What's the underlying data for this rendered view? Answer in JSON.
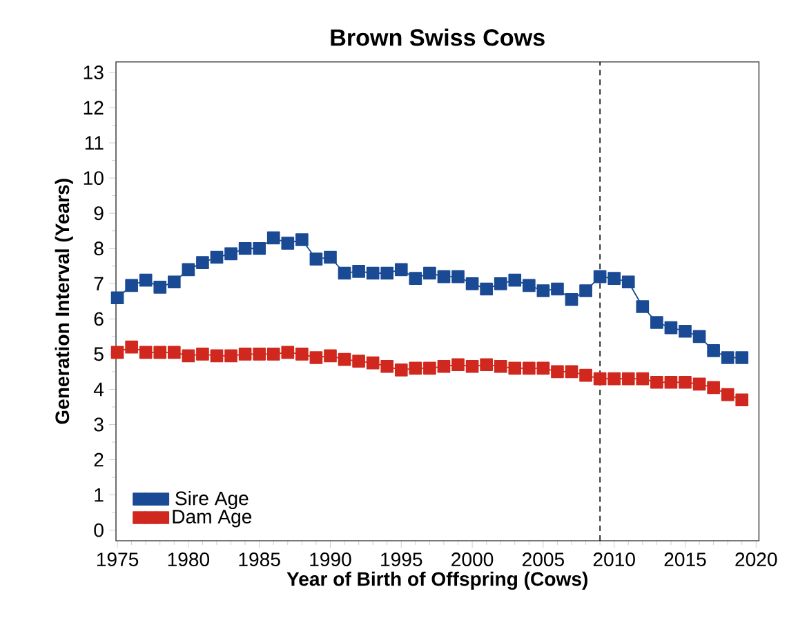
{
  "chart_data": {
    "type": "line",
    "title": "Brown Swiss Cows",
    "xlabel": "Year of Birth of Offspring (Cows)",
    "ylabel": "Generation Interval (Years)",
    "x": [
      1975,
      1976,
      1977,
      1978,
      1979,
      1980,
      1981,
      1982,
      1983,
      1984,
      1985,
      1986,
      1987,
      1988,
      1989,
      1990,
      1991,
      1992,
      1993,
      1994,
      1995,
      1996,
      1997,
      1998,
      1999,
      2000,
      2001,
      2002,
      2003,
      2004,
      2005,
      2006,
      2007,
      2008,
      2009,
      2010,
      2011,
      2012,
      2013,
      2014,
      2015,
      2016,
      2017,
      2018,
      2019
    ],
    "series": [
      {
        "name": "Sire Age",
        "color": "#1a4a94",
        "values": [
          6.6,
          6.95,
          7.1,
          6.9,
          7.05,
          7.4,
          7.6,
          7.75,
          7.85,
          8.0,
          8.0,
          8.3,
          8.15,
          8.25,
          7.7,
          7.75,
          7.3,
          7.35,
          7.3,
          7.3,
          7.4,
          7.15,
          7.3,
          7.2,
          7.2,
          7.0,
          6.85,
          7.0,
          7.1,
          6.95,
          6.8,
          6.85,
          6.55,
          6.8,
          7.2,
          7.15,
          7.05,
          6.35,
          5.9,
          5.75,
          5.65,
          5.5,
          5.1,
          4.9,
          4.9
        ]
      },
      {
        "name": "Dam Age",
        "color": "#d0281e",
        "values": [
          5.05,
          5.2,
          5.05,
          5.05,
          5.05,
          4.95,
          5.0,
          4.95,
          4.95,
          5.0,
          5.0,
          5.0,
          5.05,
          5.0,
          4.9,
          4.95,
          4.85,
          4.8,
          4.75,
          4.65,
          4.55,
          4.6,
          4.6,
          4.65,
          4.7,
          4.65,
          4.7,
          4.65,
          4.6,
          4.6,
          4.6,
          4.5,
          4.5,
          4.4,
          4.3,
          4.3,
          4.3,
          4.3,
          4.2,
          4.2,
          4.2,
          4.15,
          4.05,
          3.85,
          3.7
        ]
      }
    ],
    "xlim": [
      1974.9,
      2020.2
    ],
    "xticks": [
      1975,
      1980,
      1985,
      1990,
      1995,
      2000,
      2005,
      2010,
      2015,
      2020
    ],
    "ylim": [
      -0.3,
      13.3
    ],
    "yticks": [
      0,
      1,
      2,
      3,
      4,
      5,
      6,
      7,
      8,
      9,
      10,
      11,
      12,
      13
    ],
    "ref_lines": [
      {
        "axis": "x",
        "value": 2009,
        "color": "#000000",
        "line_style": "dashed"
      }
    ],
    "legend": "bottom left",
    "marker": "square",
    "line_style": "solid",
    "grid": false
  }
}
